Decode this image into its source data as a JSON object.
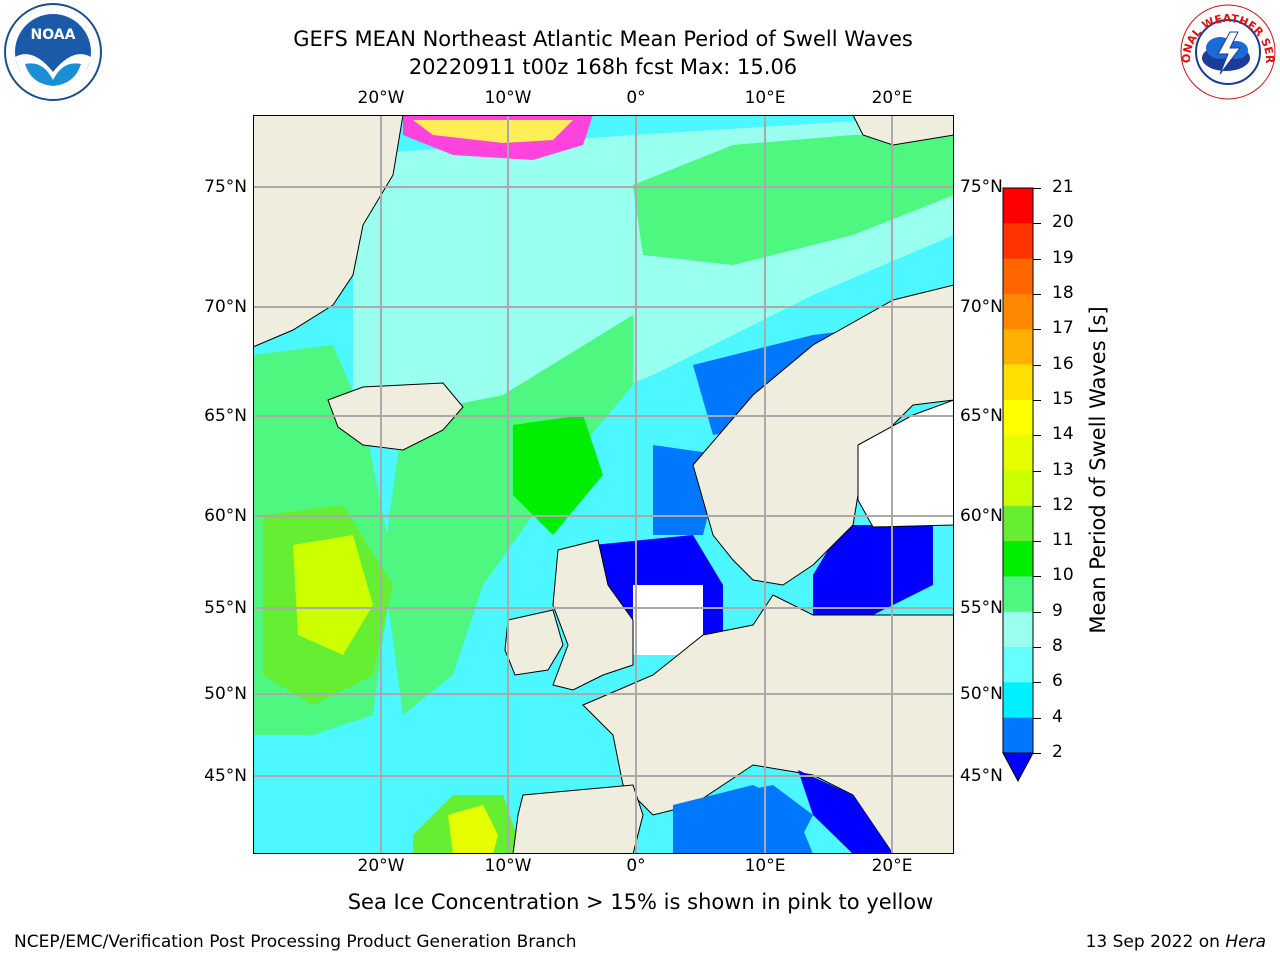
{
  "header": {
    "title_line1": "GEFS MEAN Northeast Atlantic Mean Period of Swell Waves",
    "title_line2": "20220911 t00z 168h fcst   Max: 15.06"
  },
  "map": {
    "lon_labels": [
      "20°W",
      "10°W",
      "0°",
      "10°E",
      "20°E"
    ],
    "lat_labels": [
      "75°N",
      "70°N",
      "65°N",
      "60°N",
      "55°N",
      "50°N",
      "45°N"
    ],
    "colors": {
      "land": "#efedde",
      "ocean_base": "#4df7ff",
      "gridline": "#aaaaaa"
    }
  },
  "colorbar": {
    "title": "Mean Period of Swell Waves [s]",
    "ticks": [
      "21",
      "20",
      "19",
      "18",
      "17",
      "16",
      "15",
      "14",
      "13",
      "12",
      "11",
      "10",
      "9",
      "8",
      "6",
      "4",
      "2"
    ],
    "colors": [
      "#ff0000",
      "#ff3300",
      "#ff6600",
      "#ff8800",
      "#ffb000",
      "#ffe000",
      "#ffff00",
      "#e6ff00",
      "#ccff00",
      "#66ee33",
      "#00ee00",
      "#4df780",
      "#99ffee",
      "#66ffff",
      "#00f0ff",
      "#0077ff"
    ],
    "under_color": "#0000ff"
  },
  "footer": {
    "note": "Sea Ice Concentration > 15% is shown in pink to yellow",
    "left": "NCEP/EMC/Verification Post Processing Product Generation Branch",
    "right_prefix": "13 Sep 2022 on ",
    "right_host": "Hera"
  },
  "logos": {
    "noaa_text": "NOAA",
    "nws_text": "NATIONAL WEATHER SERVICE"
  }
}
